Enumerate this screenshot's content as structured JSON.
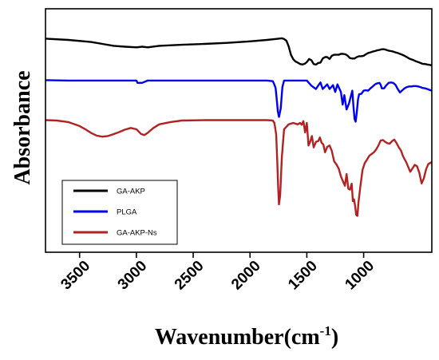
{
  "chart_data": {
    "type": "line",
    "title": "",
    "xlabel": "Wavenumber(cm",
    "xlabel_superscript": "-1",
    "xlabel_suffix": ")",
    "ylabel": "Absorbance",
    "x_reversed": true,
    "xlim": [
      3800,
      400
    ],
    "ylim": [
      -15,
      100
    ],
    "y_ticks_shown": false,
    "grid": false,
    "legend_position": "bottom-left",
    "x_ticks": [
      {
        "value": 3500,
        "label": "3500"
      },
      {
        "value": 3000,
        "label": "3000"
      },
      {
        "value": 2500,
        "label": "2500"
      },
      {
        "value": 2000,
        "label": "2000"
      },
      {
        "value": 1500,
        "label": "1500"
      },
      {
        "value": 1000,
        "label": "1000"
      }
    ],
    "series": [
      {
        "name": "GA-AKP",
        "color": "#000000",
        "x": [
          3800,
          3600,
          3400,
          3300,
          3200,
          3100,
          3000,
          2950,
          2900,
          2800,
          2600,
          2400,
          2200,
          2000,
          1850,
          1780,
          1720,
          1700,
          1680,
          1660,
          1640,
          1620,
          1600,
          1580,
          1560,
          1540,
          1520,
          1500,
          1480,
          1460,
          1440,
          1420,
          1400,
          1380,
          1360,
          1340,
          1320,
          1300,
          1280,
          1260,
          1240,
          1220,
          1200,
          1180,
          1160,
          1140,
          1120,
          1100,
          1080,
          1060,
          1040,
          1020,
          1000,
          980,
          960,
          940,
          920,
          900,
          880,
          860,
          840,
          820,
          800,
          780,
          760,
          740,
          720,
          700,
          680,
          660,
          640,
          620,
          600,
          580,
          560,
          540,
          520,
          500,
          480,
          460,
          440,
          420,
          400
        ],
        "y": [
          85.9,
          85.3,
          84.3,
          83.4,
          82.5,
          82.1,
          81.8,
          82.1,
          81.8,
          82.5,
          83.0,
          83.4,
          83.9,
          84.6,
          85.3,
          85.7,
          86.1,
          85.7,
          84.9,
          82.3,
          78.3,
          76.2,
          75.1,
          74.6,
          73.9,
          73.7,
          74.0,
          74.8,
          76.3,
          75.7,
          73.9,
          73.6,
          74.4,
          74.6,
          76.5,
          77.2,
          77.2,
          76.3,
          77.8,
          78.3,
          78.3,
          78.3,
          78.7,
          78.7,
          78.5,
          77.8,
          76.7,
          76.5,
          76.5,
          77.2,
          77.6,
          77.6,
          77.8,
          78.5,
          79.1,
          79.4,
          79.8,
          80.0,
          80.4,
          80.6,
          80.9,
          80.9,
          80.6,
          80.2,
          80.0,
          79.8,
          79.4,
          79.1,
          78.7,
          78.3,
          77.8,
          77.2,
          76.5,
          76.1,
          75.7,
          75.2,
          74.8,
          74.4,
          74.0,
          73.9,
          73.7,
          73.5,
          73.3
        ]
      },
      {
        "name": "PLGA",
        "color": "#0000ee",
        "x": [
          3800,
          3600,
          3400,
          3200,
          3000,
          2990,
          2950,
          2900,
          2800,
          2600,
          2400,
          2200,
          2000,
          1900,
          1850,
          1800,
          1790,
          1775,
          1765,
          1755,
          1745,
          1730,
          1715,
          1700,
          1600,
          1500,
          1460,
          1420,
          1400,
          1380,
          1360,
          1320,
          1300,
          1270,
          1250,
          1230,
          1200,
          1185,
          1170,
          1150,
          1130,
          1100,
          1090,
          1080,
          1070,
          1060,
          1050,
          1040,
          1020,
          1000,
          980,
          960,
          940,
          920,
          900,
          880,
          860,
          850,
          840,
          820,
          800,
          780,
          760,
          740,
          720,
          700,
          680,
          660,
          640,
          620,
          600,
          580,
          560,
          540,
          520,
          500,
          480,
          460,
          440,
          420,
          400
        ],
        "y": [
          66.3,
          66.1,
          66.1,
          66.1,
          66.1,
          65.0,
          65.0,
          66.1,
          66.1,
          66.1,
          66.1,
          66.1,
          66.1,
          66.1,
          66.1,
          65.8,
          64.8,
          62.6,
          57.3,
          51.5,
          48.9,
          52.9,
          63.0,
          66.1,
          66.1,
          66.1,
          63.7,
          62.1,
          63.7,
          65.2,
          62.1,
          64.3,
          62.1,
          63.9,
          60.7,
          64.3,
          60.7,
          54.7,
          59.2,
          52.4,
          55.1,
          61.3,
          54.0,
          48.0,
          46.7,
          51.1,
          57.1,
          59.6,
          59.8,
          61.3,
          61.5,
          61.3,
          62.4,
          63.3,
          64.3,
          64.8,
          65.0,
          64.1,
          62.4,
          62.4,
          63.9,
          65.0,
          65.2,
          65.0,
          64.1,
          62.1,
          60.5,
          61.5,
          62.4,
          63.0,
          63.3,
          63.3,
          63.5,
          63.5,
          63.3,
          63.0,
          62.6,
          62.4,
          62.1,
          61.7,
          61.3
        ]
      },
      {
        "name": "GA-AKP-Ns",
        "color": "#b22222",
        "x": [
          3800,
          3700,
          3600,
          3500,
          3450,
          3400,
          3350,
          3300,
          3250,
          3200,
          3150,
          3100,
          3050,
          3000,
          2960,
          2930,
          2900,
          2850,
          2800,
          2700,
          2600,
          2400,
          2200,
          2000,
          1900,
          1850,
          1800,
          1785,
          1770,
          1760,
          1752,
          1745,
          1735,
          1720,
          1700,
          1660,
          1620,
          1580,
          1560,
          1545,
          1530,
          1515,
          1500,
          1485,
          1470,
          1455,
          1440,
          1420,
          1400,
          1385,
          1370,
          1355,
          1340,
          1320,
          1300,
          1280,
          1260,
          1240,
          1220,
          1200,
          1180,
          1165,
          1150,
          1135,
          1120,
          1105,
          1095,
          1085,
          1075,
          1065,
          1055,
          1045,
          1030,
          1010,
          990,
          970,
          950,
          930,
          910,
          890,
          870,
          850,
          830,
          810,
          790,
          770,
          750,
          730,
          710,
          690,
          670,
          655,
          640,
          625,
          610,
          590,
          570,
          550,
          530,
          510,
          490,
          470,
          450,
          430,
          410,
          400
        ],
        "y": [
          47.4,
          47.2,
          46.5,
          44.6,
          43.1,
          41.4,
          40.1,
          39.6,
          39.9,
          40.8,
          41.8,
          42.9,
          43.7,
          43.1,
          40.9,
          40.3,
          41.4,
          43.7,
          45.4,
          46.5,
          47.2,
          47.4,
          47.4,
          47.4,
          47.4,
          47.4,
          47.2,
          46.1,
          40.7,
          27.7,
          15.7,
          7.6,
          11.9,
          29.8,
          43.1,
          45.4,
          46.1,
          45.4,
          46.1,
          45.2,
          46.9,
          41.6,
          46.1,
          35.4,
          37.3,
          39.9,
          34.5,
          37.1,
          37.5,
          39.2,
          36.7,
          35.9,
          32.2,
          34.8,
          35.4,
          32.9,
          28.0,
          26.5,
          24.6,
          20.9,
          18.2,
          16.4,
          21.9,
          15.0,
          14.6,
          17.4,
          9.1,
          10.0,
          6.9,
          2.6,
          2.2,
          8.9,
          15.5,
          23.9,
          27.1,
          28.8,
          30.6,
          31.4,
          32.2,
          33.5,
          35.4,
          37.8,
          38.0,
          37.1,
          36.5,
          36.3,
          37.5,
          38.2,
          36.5,
          34.5,
          32.9,
          30.6,
          29.0,
          27.5,
          25.6,
          23.0,
          24.6,
          26.3,
          25.6,
          22.6,
          17.5,
          19.9,
          24.3,
          26.7,
          27.3,
          27.5
        ]
      }
    ]
  }
}
